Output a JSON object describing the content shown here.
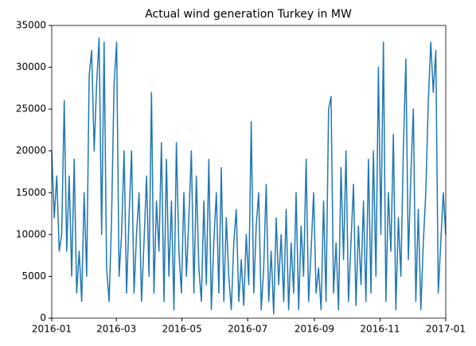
{
  "chart_data": {
    "type": "line",
    "title": "Actual wind generation Turkey in MW",
    "xlim": [
      "2016-01",
      "2017-01"
    ],
    "xticks": [
      "2016-01",
      "2016-03",
      "2016-05",
      "2016-07",
      "2016-09",
      "2016-11",
      "2017-01"
    ],
    "ylim": [
      0,
      35000
    ],
    "yticks": [
      0,
      5000,
      10000,
      15000,
      20000,
      25000,
      30000,
      35000
    ],
    "grid": false,
    "series": [
      {
        "color": "#1f77b4",
        "values": [
          20000,
          12000,
          17000,
          8000,
          10000,
          26000,
          8000,
          17000,
          5000,
          19000,
          3000,
          8000,
          2000,
          15000,
          5000,
          29000,
          32000,
          20000,
          28000,
          33500,
          10000,
          33000,
          6000,
          2000,
          12000,
          28000,
          33000,
          5000,
          10000,
          20000,
          3000,
          12000,
          20000,
          3000,
          10000,
          15000,
          2000,
          9000,
          17000,
          5000,
          27000,
          3000,
          14000,
          8000,
          21000,
          2000,
          19000,
          5000,
          14000,
          1000,
          21000,
          8000,
          3000,
          15000,
          5000,
          12000,
          20000,
          3000,
          17000,
          6000,
          2000,
          14000,
          4000,
          19000,
          1000,
          9000,
          15000,
          3000,
          18000,
          2000,
          12000,
          5000,
          1000,
          9000,
          13000,
          2000,
          7000,
          1500,
          10000,
          4000,
          23500,
          3000,
          11000,
          15000,
          1000,
          6000,
          16000,
          2000,
          8000,
          500,
          12000,
          4000,
          10000,
          2000,
          13000,
          1000,
          9000,
          3000,
          15000,
          1000,
          11000,
          5000,
          19000,
          2000,
          8000,
          15000,
          3000,
          6000,
          1000,
          14000,
          2000,
          25000,
          26500,
          3000,
          9000,
          1000,
          18000,
          7000,
          20000,
          2000,
          9000,
          16000,
          1500,
          11000,
          4000,
          14000,
          2000,
          19000,
          3000,
          20000,
          5000,
          30000,
          10000,
          33000,
          2000,
          15000,
          8000,
          22000,
          1000,
          12000,
          5000,
          20000,
          31000,
          7000,
          17000,
          25000,
          2000,
          13000,
          1000,
          9000,
          15000,
          26000,
          33000,
          27000,
          32000,
          3000,
          9000,
          15000,
          10000
        ]
      }
    ]
  }
}
